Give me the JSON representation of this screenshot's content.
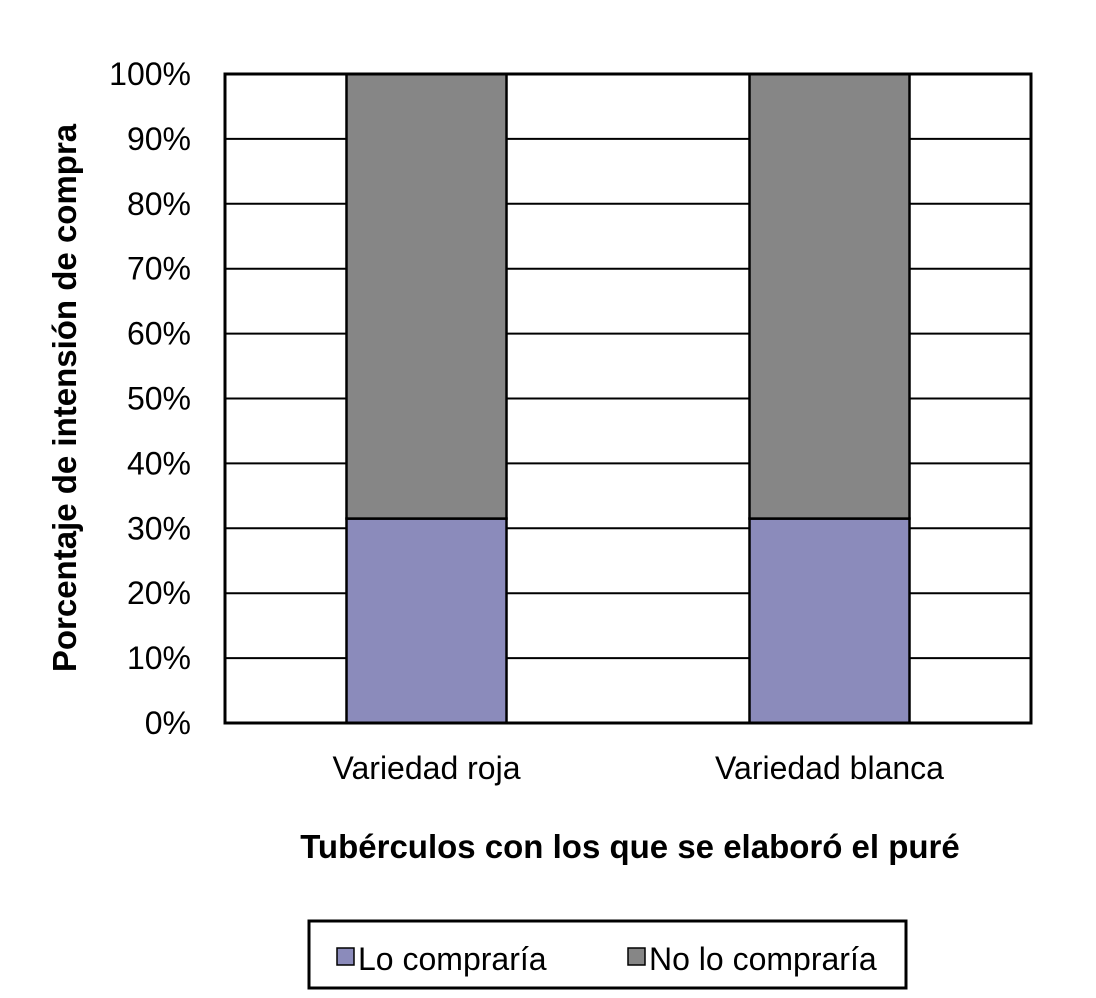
{
  "chart_data": {
    "type": "bar",
    "stacked": true,
    "percent": true,
    "categories": [
      "Variedad roja",
      "Variedad blanca"
    ],
    "series": [
      {
        "name": "Lo compraría",
        "values": [
          31.5,
          31.5
        ],
        "color": "#8b8bbb"
      },
      {
        "name": "No lo compraría",
        "values": [
          68.5,
          68.5
        ],
        "color": "#868686"
      }
    ],
    "xlabel": "Tubérculos con los que se elaboró el puré",
    "ylabel": "Porcentaje de intensión de compra",
    "ylim": [
      0,
      100
    ],
    "yticks": [
      "0%",
      "10%",
      "20%",
      "30%",
      "40%",
      "50%",
      "60%",
      "70%",
      "80%",
      "90%",
      "100%"
    ],
    "grid": true,
    "legend_position": "bottom"
  }
}
